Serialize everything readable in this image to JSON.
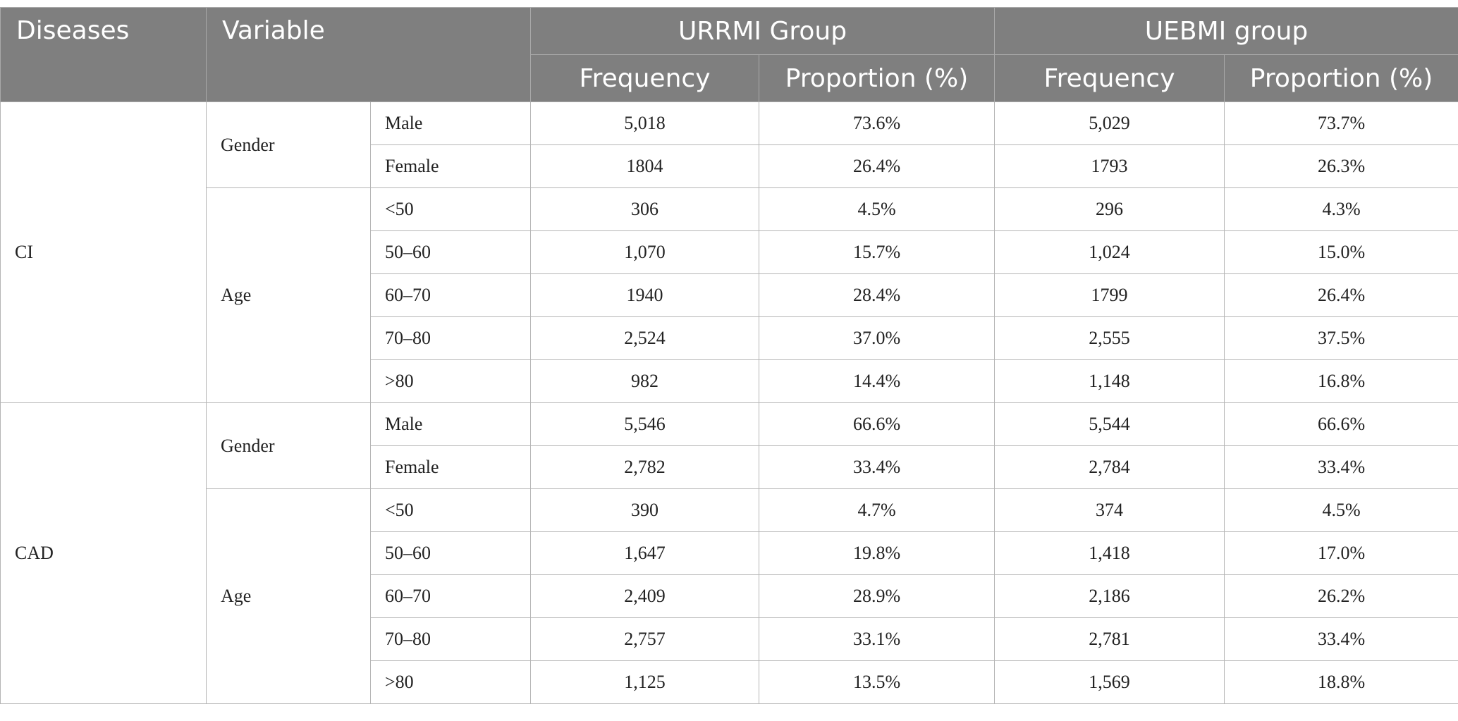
{
  "header": {
    "diseases": "Diseases",
    "variable": "Variable",
    "urrmi_group": "URRMI Group",
    "uebmi_group": "UEBMI group",
    "frequency_1": "Frequency",
    "proportion_1": "Proportion (%)",
    "frequency_2": "Frequency",
    "proportion_2": "Proportion (%)"
  },
  "diseases": [
    {
      "name": "CI",
      "groups": [
        {
          "label": "Gender",
          "rows": [
            {
              "level": "Male",
              "urrmi_freq": "5,018",
              "urrmi_prop": "73.6%",
              "uebmi_freq": "5,029",
              "uebmi_prop": "73.7%"
            },
            {
              "level": "Female",
              "urrmi_freq": "1804",
              "urrmi_prop": "26.4%",
              "uebmi_freq": "1793",
              "uebmi_prop": "26.3%"
            }
          ]
        },
        {
          "label": "Age",
          "rows": [
            {
              "level": "<50",
              "urrmi_freq": "306",
              "urrmi_prop": "4.5%",
              "uebmi_freq": "296",
              "uebmi_prop": "4.3%"
            },
            {
              "level": "50–60",
              "urrmi_freq": "1,070",
              "urrmi_prop": "15.7%",
              "uebmi_freq": "1,024",
              "uebmi_prop": "15.0%"
            },
            {
              "level": "60–70",
              "urrmi_freq": "1940",
              "urrmi_prop": "28.4%",
              "uebmi_freq": "1799",
              "uebmi_prop": "26.4%"
            },
            {
              "level": "70–80",
              "urrmi_freq": "2,524",
              "urrmi_prop": "37.0%",
              "uebmi_freq": "2,555",
              "uebmi_prop": "37.5%"
            },
            {
              "level": ">80",
              "urrmi_freq": "982",
              "urrmi_prop": "14.4%",
              "uebmi_freq": "1,148",
              "uebmi_prop": "16.8%"
            }
          ]
        }
      ]
    },
    {
      "name": "CAD",
      "groups": [
        {
          "label": "Gender",
          "rows": [
            {
              "level": "Male",
              "urrmi_freq": "5,546",
              "urrmi_prop": "66.6%",
              "uebmi_freq": "5,544",
              "uebmi_prop": "66.6%"
            },
            {
              "level": "Female",
              "urrmi_freq": "2,782",
              "urrmi_prop": "33.4%",
              "uebmi_freq": "2,784",
              "uebmi_prop": "33.4%"
            }
          ]
        },
        {
          "label": "Age",
          "rows": [
            {
              "level": "<50",
              "urrmi_freq": "390",
              "urrmi_prop": "4.7%",
              "uebmi_freq": "374",
              "uebmi_prop": "4.5%"
            },
            {
              "level": "50–60",
              "urrmi_freq": "1,647",
              "urrmi_prop": "19.8%",
              "uebmi_freq": "1,418",
              "uebmi_prop": "17.0%"
            },
            {
              "level": "60–70",
              "urrmi_freq": "2,409",
              "urrmi_prop": "28.9%",
              "uebmi_freq": "2,186",
              "uebmi_prop": "26.2%"
            },
            {
              "level": "70–80",
              "urrmi_freq": "2,757",
              "urrmi_prop": "33.1%",
              "uebmi_freq": "2,781",
              "uebmi_prop": "33.4%"
            },
            {
              "level": ">80",
              "urrmi_freq": "1,125",
              "urrmi_prop": "13.5%",
              "uebmi_freq": "1,569",
              "uebmi_prop": "18.8%"
            }
          ]
        }
      ]
    }
  ],
  "colors": {
    "header_bg": "#7f7f7f",
    "header_text": "#ffffff",
    "border": "#b5b5b5"
  }
}
